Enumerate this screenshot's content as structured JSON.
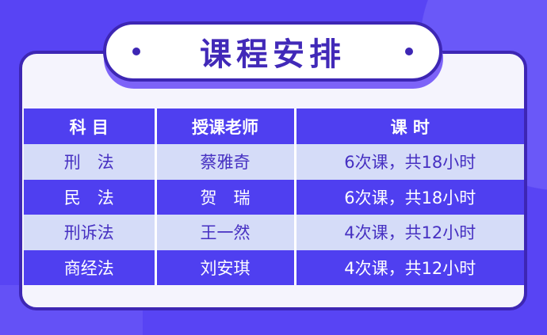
{
  "title": "课程安排",
  "colors": {
    "background": "#5844f4",
    "accent": "#3d26b4",
    "row_dark": "#4f3ff0",
    "row_light": "#d5dcf8"
  },
  "table": {
    "headers": [
      "科 目",
      "授课老师",
      "课 时"
    ],
    "rows": [
      [
        "刑　法",
        "蔡雅奇",
        "6次课，共18小时"
      ],
      [
        "民　法",
        "贺　瑞",
        "6次课，共18小时"
      ],
      [
        "刑诉法",
        "王一然",
        "4次课，共12小时"
      ],
      [
        "商经法",
        "刘安琪",
        "4次课，共12小时"
      ]
    ]
  }
}
